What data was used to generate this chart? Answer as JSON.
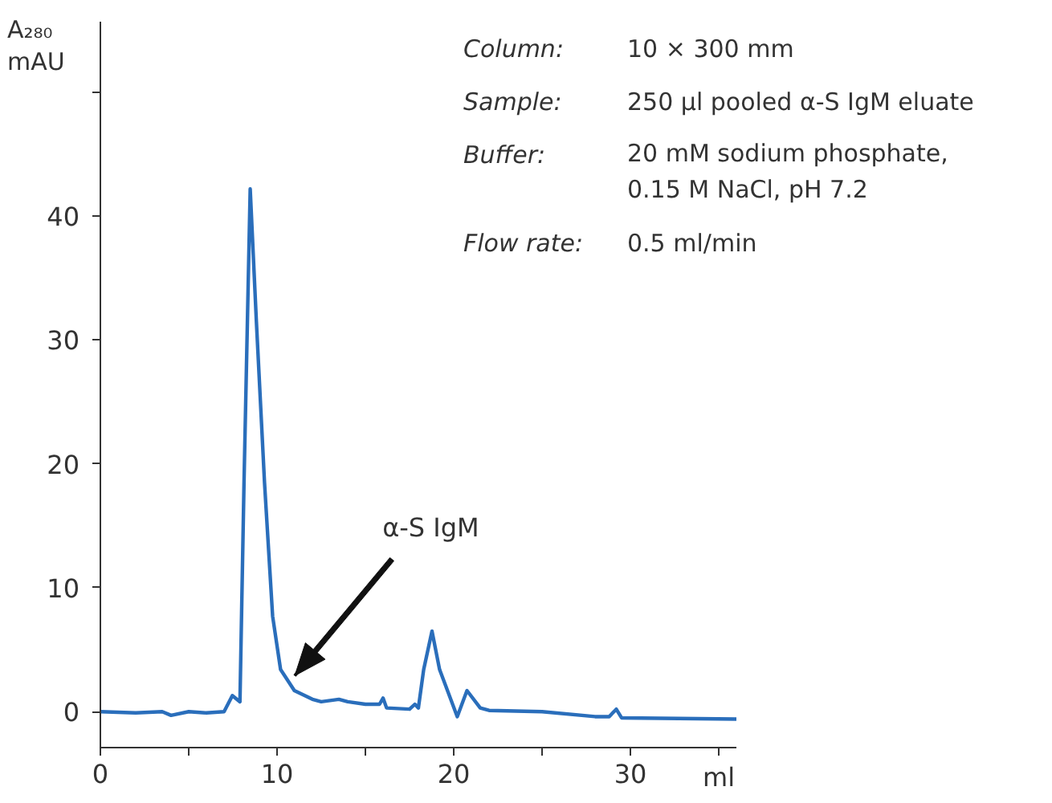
{
  "chart_data": {
    "type": "line",
    "ylabel": "A₂₈₀ mAU",
    "xlabel": "ml",
    "x": [
      0,
      2,
      3.5,
      4,
      5,
      6,
      7,
      7.47,
      7.9,
      8.13,
      8.48,
      8.83,
      9.29,
      9.75,
      10.2,
      10.98,
      12,
      12.5,
      13.5,
      14,
      15,
      15.8,
      16,
      16.2,
      17.5,
      17.8,
      18,
      18.3,
      18.77,
      19.2,
      20.2,
      20.75,
      21.5,
      22,
      25,
      28,
      28.8,
      29.2,
      29.5,
      36
    ],
    "series": [
      {
        "color": "#2a6ebb",
        "values": [
          0,
          -0.1,
          0,
          -0.3,
          0,
          -0.1,
          0,
          1.3,
          0.8,
          18.5,
          42.2,
          31.5,
          18.5,
          7.7,
          3.4,
          1.7,
          1.0,
          0.8,
          1.0,
          0.8,
          0.6,
          0.6,
          1.1,
          0.3,
          0.2,
          0.6,
          0.3,
          3.4,
          6.5,
          3.4,
          -0.4,
          1.7,
          0.3,
          0.1,
          0,
          -0.4,
          -0.4,
          0.2,
          -0.5,
          -0.6
        ]
      }
    ],
    "xlim": [
      0,
      36
    ],
    "ylim": [
      -2.9,
      55.7
    ],
    "xticks": [
      0,
      {
        "value": 5,
        "label": null
      },
      10,
      {
        "value": 15,
        "label": null
      },
      20,
      {
        "value": 25,
        "label": null
      },
      30,
      {
        "value": 35,
        "label": null
      }
    ],
    "yticks": [
      0,
      10,
      20,
      30,
      40,
      {
        "value": 50,
        "label": null
      }
    ],
    "grid": false,
    "line_style": "solid",
    "marker": "none",
    "annotations": [
      {
        "text": "α-S IgM",
        "x": 11.0,
        "y": 2.9
      },
      "Column:\t10 × 300 mm",
      "Sample:\t250 µl pooled α-S IgM eluate",
      "Buffer:\t20 mM sodium phosphate,\n0.15 M NaCl, pH 7.2",
      "Flow rate:\t0.5 ml/min"
    ]
  }
}
